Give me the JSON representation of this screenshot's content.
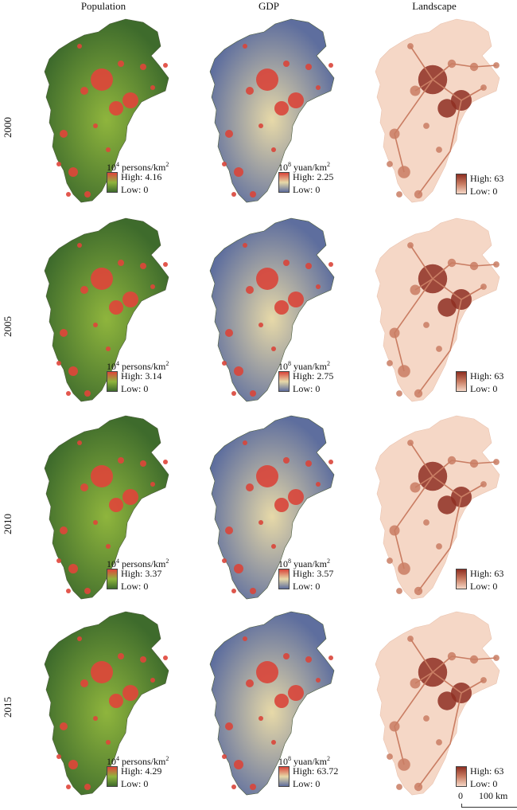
{
  "columns": [
    "Population",
    "GDP",
    "Landscape"
  ],
  "colors": {
    "population": {
      "base": "#3e6b2c",
      "mid": "#8fb53d",
      "hot": "#e0453a"
    },
    "gdp": {
      "base": "#5e6e9e",
      "mid": "#e7d9a8",
      "hot": "#d9453a"
    },
    "landscape": {
      "base": "#f5d7c6",
      "mid": "#c97d63",
      "hot": "#8e2f22"
    }
  },
  "rows": [
    {
      "year": "2000",
      "population": {
        "unit_base": "10",
        "unit_exp": "4",
        "unit_rest": " persons/km",
        "unit_sq": "2",
        "high": "High: 4.16",
        "low": "Low: 0"
      },
      "gdp": {
        "unit_base": "10",
        "unit_exp": "8",
        "unit_rest": " yuan/km",
        "unit_sq": "2",
        "high": "High: 2.25",
        "low": "Low: 0"
      },
      "landscape": {
        "high": "High: 63",
        "low": "Low: 0"
      }
    },
    {
      "year": "2005",
      "population": {
        "unit_base": "10",
        "unit_exp": "4",
        "unit_rest": " persons/km",
        "unit_sq": "2",
        "high": "High: 3.14",
        "low": "Low: 0"
      },
      "gdp": {
        "unit_base": "10",
        "unit_exp": "8",
        "unit_rest": " yuan/km",
        "unit_sq": "2",
        "high": "High: 2.75",
        "low": "Low: 0"
      },
      "landscape": {
        "high": "High: 63",
        "low": "Low: 0"
      }
    },
    {
      "year": "2010",
      "population": {
        "unit_base": "10",
        "unit_exp": "4",
        "unit_rest": " persons/km",
        "unit_sq": "2",
        "high": "High: 3.37",
        "low": "Low: 0"
      },
      "gdp": {
        "unit_base": "10",
        "unit_exp": "8",
        "unit_rest": " yuan/km",
        "unit_sq": "2",
        "high": "High: 3.57",
        "low": "Low: 0"
      },
      "landscape": {
        "high": "High: 63",
        "low": "Low: 0"
      }
    },
    {
      "year": "2015",
      "population": {
        "unit_base": "10",
        "unit_exp": "4",
        "unit_rest": " persons/km",
        "unit_sq": "2",
        "high": "High: 4.29",
        "low": "Low: 0"
      },
      "gdp": {
        "unit_base": "10",
        "unit_exp": "8",
        "unit_rest": " yuan/km",
        "unit_sq": "2",
        "high": "High: 63.72",
        "low": "Low: 0"
      },
      "landscape": {
        "high": "High: 63",
        "low": "Low: 0"
      }
    }
  ],
  "scale_bar": {
    "start": "0",
    "end": "100 km"
  }
}
